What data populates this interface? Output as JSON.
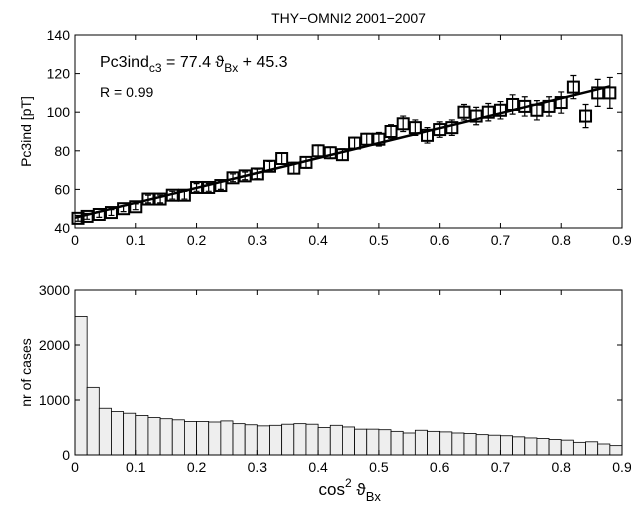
{
  "chart_data": [
    {
      "type": "scatter",
      "title": "THY−OMNI2 2001−2007",
      "y_label": "Pc3ind [pT]",
      "annotation": [
        "Pc3ind",
        "c3",
        " = 77.4 ϑ",
        "Bx",
        " + 45.3"
      ],
      "annotation2": "R = 0.99",
      "x": [
        0.005,
        0.02,
        0.04,
        0.06,
        0.08,
        0.1,
        0.12,
        0.14,
        0.16,
        0.18,
        0.2,
        0.22,
        0.24,
        0.26,
        0.28,
        0.3,
        0.32,
        0.34,
        0.36,
        0.38,
        0.4,
        0.42,
        0.44,
        0.46,
        0.48,
        0.5,
        0.52,
        0.54,
        0.56,
        0.58,
        0.6,
        0.62,
        0.64,
        0.66,
        0.68,
        0.7,
        0.72,
        0.74,
        0.76,
        0.78,
        0.8,
        0.82,
        0.84,
        0.86,
        0.88
      ],
      "values": [
        45,
        46,
        47,
        48,
        50,
        51,
        55,
        55,
        57,
        57,
        61,
        61,
        62,
        66,
        67,
        68,
        72,
        76,
        71,
        74,
        80,
        79,
        78,
        84,
        86,
        86,
        90,
        94,
        92,
        88,
        91,
        92,
        100,
        98,
        100,
        101,
        104,
        103,
        101,
        103,
        105,
        113,
        98,
        110,
        110
      ],
      "errors": [
        1.5,
        1.5,
        1.5,
        1.5,
        1.5,
        1.5,
        2,
        2,
        2,
        2,
        2,
        2,
        2,
        2,
        2,
        2.5,
        2.5,
        3,
        3,
        3,
        3,
        3,
        3,
        3,
        3,
        3.5,
        3.5,
        4,
        4,
        4,
        4,
        4,
        4,
        4.5,
        4.5,
        4.5,
        5,
        5,
        5,
        5,
        5.5,
        6,
        6,
        7,
        8
      ],
      "color": "#000000",
      "fit": {
        "x": [
          0,
          0.88
        ],
        "values": [
          45.3,
          113.4
        ]
      },
      "xlim": [
        0,
        0.9
      ],
      "xticks": [
        0,
        0.1,
        0.2,
        0.3,
        0.4,
        0.5,
        0.6,
        0.7,
        0.8,
        0.9
      ],
      "ylim": [
        40,
        140
      ],
      "yticks": [
        40,
        60,
        80,
        100,
        120,
        140
      ]
    },
    {
      "type": "histogram",
      "y_label": "nr of cases",
      "x_label": [
        "cos",
        "2",
        " ϑ",
        "Bx"
      ],
      "bins": [
        0,
        0.02,
        0.04,
        0.06,
        0.08,
        0.1,
        0.12,
        0.14,
        0.16,
        0.18,
        0.2,
        0.22,
        0.24,
        0.26,
        0.28,
        0.3,
        0.32,
        0.34,
        0.36,
        0.38,
        0.4,
        0.42,
        0.44,
        0.46,
        0.48,
        0.5,
        0.52,
        0.54,
        0.56,
        0.58,
        0.6,
        0.62,
        0.64,
        0.66,
        0.68,
        0.7,
        0.72,
        0.74,
        0.76,
        0.78,
        0.8,
        0.82,
        0.84,
        0.86,
        0.88,
        0.9
      ],
      "values": [
        2520,
        1230,
        850,
        790,
        760,
        720,
        680,
        660,
        640,
        610,
        610,
        600,
        620,
        570,
        550,
        530,
        540,
        560,
        570,
        560,
        500,
        540,
        510,
        470,
        470,
        460,
        430,
        400,
        450,
        430,
        420,
        400,
        390,
        370,
        360,
        350,
        330,
        310,
        300,
        280,
        270,
        230,
        240,
        200,
        170
      ],
      "color": "#eeeeee",
      "xlim": [
        0,
        0.9
      ],
      "xticks": [
        0,
        0.1,
        0.2,
        0.3,
        0.4,
        0.5,
        0.6,
        0.7,
        0.8,
        0.9
      ],
      "ylim": [
        0,
        3000
      ],
      "yticks": [
        0,
        1000,
        2000,
        3000
      ]
    }
  ]
}
